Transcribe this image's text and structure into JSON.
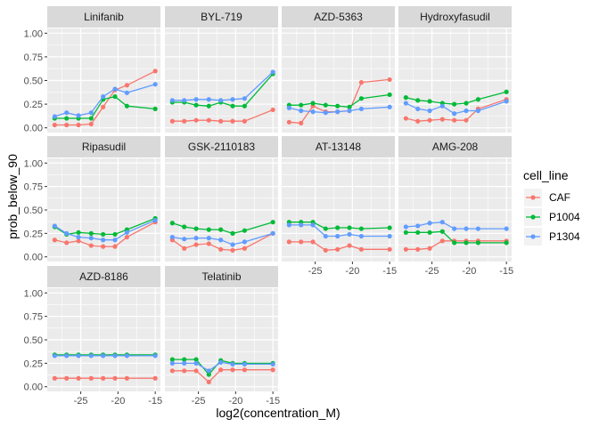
{
  "chart_data": {
    "type": "line",
    "xlabel": "log2(concentration_M)",
    "ylabel": "prob_below_90",
    "xlim": [
      -29.5,
      -14.3
    ],
    "ylim": [
      -0.05,
      1.05
    ],
    "x_ticks": [
      -25,
      -20,
      -15
    ],
    "x_tick_labels": [
      "-25",
      "-20",
      "-15"
    ],
    "y_ticks": [
      0,
      0.25,
      0.5,
      0.75,
      1
    ],
    "y_tick_labels": [
      "0.00",
      "0.25",
      "0.50",
      "0.75",
      "1.00"
    ],
    "grid": true,
    "legend": {
      "title": "cell_line",
      "position": "right",
      "entries": [
        {
          "name": "CAF",
          "color": "#F8766D"
        },
        {
          "name": "P1004",
          "color": "#00BA38"
        },
        {
          "name": "P1304",
          "color": "#619CFF"
        }
      ]
    },
    "x": [
      -28.5,
      -26.9,
      -25.3,
      -23.6,
      -22.0,
      -20.4,
      -18.8,
      -15.0
    ],
    "panels": [
      {
        "title": "Linifanib",
        "series": [
          {
            "name": "CAF",
            "values": [
              0.03,
              0.03,
              0.03,
              0.04,
              0.22,
              0.4,
              0.45,
              0.6
            ]
          },
          {
            "name": "P1004",
            "values": [
              0.1,
              0.1,
              0.1,
              0.1,
              0.3,
              0.33,
              0.23,
              0.2
            ]
          },
          {
            "name": "P1304",
            "values": [
              0.12,
              0.16,
              0.13,
              0.16,
              0.33,
              0.41,
              0.37,
              0.46
            ]
          }
        ]
      },
      {
        "title": "BYL-719",
        "series": [
          {
            "name": "CAF",
            "values": [
              0.07,
              0.07,
              0.08,
              0.08,
              0.07,
              0.07,
              0.07,
              0.19
            ]
          },
          {
            "name": "P1004",
            "values": [
              0.27,
              0.27,
              0.24,
              0.23,
              0.27,
              0.23,
              0.23,
              0.57
            ]
          },
          {
            "name": "P1304",
            "values": [
              0.29,
              0.29,
              0.3,
              0.3,
              0.29,
              0.3,
              0.31,
              0.59
            ]
          }
        ]
      },
      {
        "title": "AZD-5363",
        "series": [
          {
            "name": "CAF",
            "values": [
              0.06,
              0.05,
              0.23,
              0.17,
              0.17,
              0.18,
              0.48,
              0.51
            ]
          },
          {
            "name": "P1004",
            "values": [
              0.24,
              0.24,
              0.26,
              0.24,
              0.23,
              0.22,
              0.31,
              0.35
            ]
          },
          {
            "name": "P1304",
            "values": [
              0.21,
              0.18,
              0.17,
              0.16,
              0.17,
              0.18,
              0.2,
              0.22
            ]
          }
        ]
      },
      {
        "title": "Hydroxyfasudil",
        "series": [
          {
            "name": "CAF",
            "values": [
              0.1,
              0.07,
              0.08,
              0.09,
              0.08,
              0.08,
              0.2,
              0.3
            ]
          },
          {
            "name": "P1004",
            "values": [
              0.32,
              0.29,
              0.28,
              0.26,
              0.25,
              0.26,
              0.3,
              0.38
            ]
          },
          {
            "name": "P1304",
            "values": [
              0.26,
              0.2,
              0.18,
              0.23,
              0.15,
              0.18,
              0.18,
              0.28
            ]
          }
        ]
      },
      {
        "title": "Ripasudil",
        "series": [
          {
            "name": "CAF",
            "values": [
              0.18,
              0.15,
              0.17,
              0.12,
              0.11,
              0.11,
              0.21,
              0.37
            ]
          },
          {
            "name": "P1004",
            "values": [
              0.32,
              0.24,
              0.26,
              0.25,
              0.24,
              0.24,
              0.29,
              0.41
            ]
          },
          {
            "name": "P1304",
            "values": [
              0.33,
              0.25,
              0.21,
              0.2,
              0.18,
              0.18,
              0.26,
              0.39
            ]
          }
        ]
      },
      {
        "title": "GSK-2110183",
        "series": [
          {
            "name": "CAF",
            "values": [
              0.18,
              0.09,
              0.13,
              0.14,
              0.08,
              0.07,
              0.09,
              0.25
            ]
          },
          {
            "name": "P1004",
            "values": [
              0.36,
              0.32,
              0.3,
              0.29,
              0.29,
              0.25,
              0.28,
              0.37
            ]
          },
          {
            "name": "P1304",
            "values": [
              0.21,
              0.19,
              0.2,
              0.2,
              0.18,
              0.13,
              0.16,
              0.25
            ]
          }
        ]
      },
      {
        "title": "AT-13148",
        "series": [
          {
            "name": "CAF",
            "values": [
              0.16,
              0.16,
              0.16,
              0.07,
              0.08,
              0.12,
              0.08,
              0.08
            ]
          },
          {
            "name": "P1004",
            "values": [
              0.37,
              0.37,
              0.37,
              0.3,
              0.31,
              0.31,
              0.3,
              0.31
            ]
          },
          {
            "name": "P1304",
            "values": [
              0.34,
              0.34,
              0.34,
              0.22,
              0.22,
              0.24,
              0.22,
              0.22
            ]
          }
        ]
      },
      {
        "title": "AMG-208",
        "series": [
          {
            "name": "CAF",
            "values": [
              0.08,
              0.08,
              0.09,
              0.17,
              0.17,
              0.17,
              0.17,
              0.17
            ]
          },
          {
            "name": "P1004",
            "values": [
              0.26,
              0.26,
              0.26,
              0.27,
              0.15,
              0.15,
              0.15,
              0.15
            ]
          },
          {
            "name": "P1304",
            "values": [
              0.32,
              0.33,
              0.36,
              0.37,
              0.3,
              0.3,
              0.3,
              0.3
            ]
          }
        ]
      },
      {
        "title": "AZD-8186",
        "series": [
          {
            "name": "CAF",
            "values": [
              0.09,
              0.09,
              0.09,
              0.09,
              0.09,
              0.09,
              0.09,
              0.09
            ]
          },
          {
            "name": "P1004",
            "values": [
              0.34,
              0.34,
              0.34,
              0.34,
              0.34,
              0.34,
              0.34,
              0.34
            ]
          },
          {
            "name": "P1304",
            "values": [
              0.33,
              0.33,
              0.33,
              0.33,
              0.33,
              0.33,
              0.33,
              0.33
            ]
          }
        ]
      },
      {
        "title": "Telatinib",
        "series": [
          {
            "name": "CAF",
            "values": [
              0.17,
              0.17,
              0.17,
              0.05,
              0.18,
              0.18,
              0.18,
              0.18
            ]
          },
          {
            "name": "P1004",
            "values": [
              0.29,
              0.29,
              0.29,
              0.13,
              0.28,
              0.25,
              0.25,
              0.25
            ]
          },
          {
            "name": "P1304",
            "values": [
              0.25,
              0.25,
              0.25,
              0.17,
              0.26,
              0.24,
              0.24,
              0.24
            ]
          }
        ]
      }
    ]
  }
}
